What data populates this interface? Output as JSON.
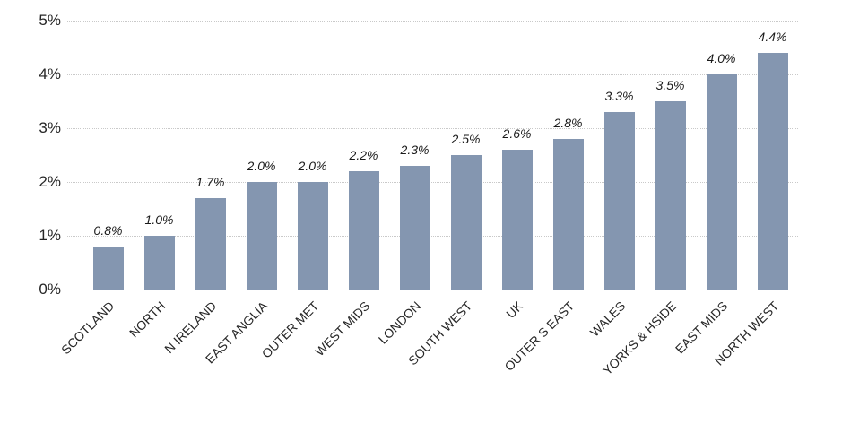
{
  "chart_data": {
    "type": "bar",
    "title": "",
    "xlabel": "",
    "ylabel": "",
    "categories": [
      "SCOTLAND",
      "NORTH",
      "N IRELAND",
      "EAST ANGLIA",
      "OUTER MET",
      "WEST MIDS",
      "LONDON",
      "SOUTH WEST",
      "UK",
      "OUTER S EAST",
      "WALES",
      "YORKS & HSIDE",
      "EAST MIDS",
      "NORTH WEST"
    ],
    "values": [
      0.8,
      1.0,
      1.7,
      2.0,
      2.0,
      2.2,
      2.3,
      2.5,
      2.6,
      2.8,
      3.3,
      3.5,
      4.0,
      4.4
    ],
    "value_labels": [
      "0.8%",
      "1.0%",
      "1.7%",
      "2.0%",
      "2.0%",
      "2.2%",
      "2.3%",
      "2.5%",
      "2.6%",
      "2.8%",
      "3.3%",
      "3.5%",
      "4.0%",
      "4.4%"
    ],
    "ylim": [
      0,
      5
    ],
    "yticks": [
      0,
      1,
      2,
      3,
      4,
      5
    ],
    "ytick_labels": [
      "0%",
      "1%",
      "2%",
      "3%",
      "4%",
      "5%"
    ],
    "grid": "horizontal-dotted",
    "legend": "none",
    "colors": {
      "bar_fill": "#8496B0",
      "gridline": "#c9c9c9",
      "axis_line": "#d6d6d6",
      "tick_text": "#262626",
      "value_text": "#1a1a1a"
    }
  }
}
